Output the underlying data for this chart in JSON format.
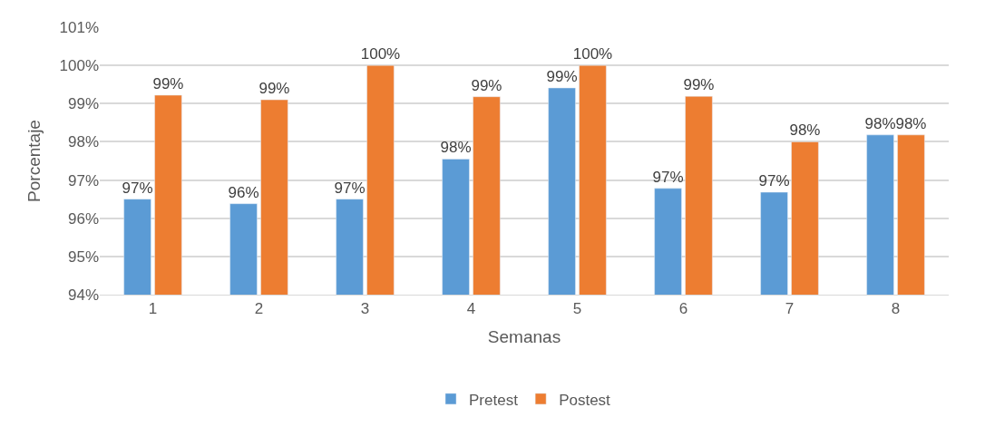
{
  "chart_data": {
    "type": "bar",
    "xlabel": "Semanas",
    "ylabel": "Porcentaje",
    "categories": [
      "1",
      "2",
      "3",
      "4",
      "5",
      "6",
      "7",
      "8"
    ],
    "series": [
      {
        "name": "Pretest",
        "color": "#5b9bd5",
        "values": [
          96.5,
          96.38,
          96.5,
          97.55,
          99.41,
          96.78,
          96.68,
          98.18
        ],
        "value_labels": [
          "97%",
          "96%",
          "97%",
          "98%",
          "99%",
          "97%",
          "97%",
          "98%"
        ]
      },
      {
        "name": "Postest",
        "color": "#ed7d31",
        "values": [
          99.22,
          99.1,
          100,
          99.18,
          100,
          99.19,
          98.0,
          98.18
        ],
        "value_labels": [
          "99%",
          "99%",
          "100%",
          "99%",
          "100%",
          "99%",
          "98%",
          "98%"
        ]
      }
    ],
    "ylim": [
      94,
      101
    ],
    "yticks": [
      {
        "value": 94,
        "label": "94%"
      },
      {
        "value": 95,
        "label": "95%"
      },
      {
        "value": 96,
        "label": "96%"
      },
      {
        "value": 97,
        "label": "97%"
      },
      {
        "value": 98,
        "label": "98%"
      },
      {
        "value": 99,
        "label": "99%"
      },
      {
        "value": 100,
        "label": "100%"
      },
      {
        "value": 101,
        "label": "101%"
      }
    ],
    "grid": "y",
    "legend": "bottom"
  }
}
